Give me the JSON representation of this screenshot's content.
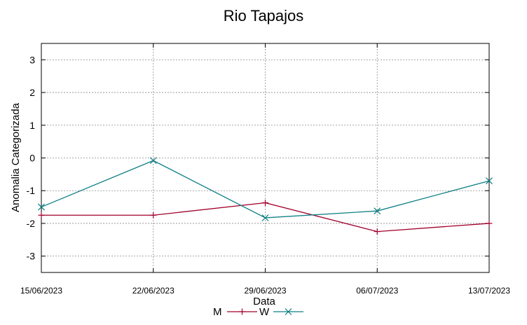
{
  "chart_data": {
    "type": "line",
    "title": "Rio Tapajos",
    "xlabel": "Data",
    "ylabel": "Anomalia Categorizada",
    "x": [
      "15/06/2023",
      "22/06/2023",
      "29/06/2023",
      "06/07/2023",
      "13/07/2023"
    ],
    "ylim": [
      -3.5,
      3.5
    ],
    "yticks": [
      3,
      2,
      1,
      0,
      -1,
      -2,
      -3
    ],
    "yticklabels": [
      "3",
      "2",
      "1",
      "0",
      "-1",
      "-2",
      "-3"
    ],
    "grid": true,
    "legend": "bottom-center",
    "series": [
      {
        "name": "M",
        "values": [
          -1.75,
          -1.75,
          -1.37,
          -2.25,
          -2.0
        ],
        "color": "#a0002a",
        "marker": "plus"
      },
      {
        "name": "W",
        "values": [
          -1.5,
          -0.08,
          -1.83,
          -1.62,
          -0.7
        ],
        "color": "#0e7f84",
        "marker": "cross"
      }
    ]
  }
}
